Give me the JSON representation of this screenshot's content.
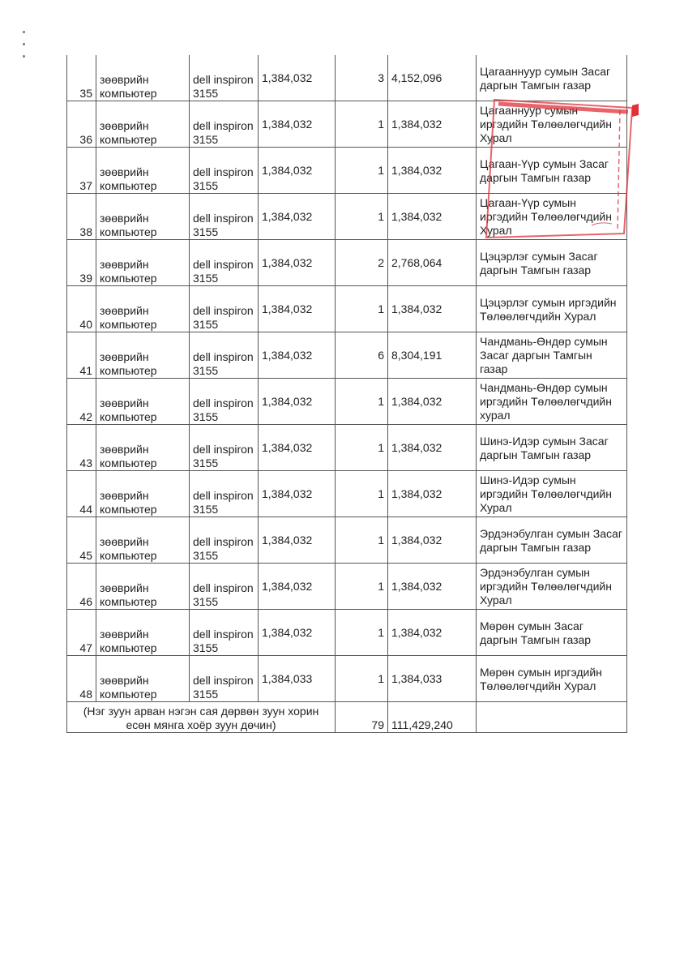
{
  "rows": [
    {
      "no": "35",
      "item": "зөөврийн компьютер",
      "model": "dell inspiron 3155",
      "price": "1,384,032",
      "qty": "3",
      "total": "4,152,096",
      "org": "Цагааннуур сумын Засаг даргын Тамгын газар"
    },
    {
      "no": "36",
      "item": "зөөврийн компьютер",
      "model": "dell inspiron 3155",
      "price": "1,384,032",
      "qty": "1",
      "total": "1,384,032",
      "org": "Цагааннуур сумын иргэдийн Төлөөлөгчдийн Хурал"
    },
    {
      "no": "37",
      "item": "зөөврийн компьютер",
      "model": "dell inspiron 3155",
      "price": "1,384,032",
      "qty": "1",
      "total": "1,384,032",
      "org": "Цагаан-Үүр сумын Засаг даргын Тамгын газар"
    },
    {
      "no": "38",
      "item": "зөөврийн компьютер",
      "model": "dell inspiron 3155",
      "price": "1,384,032",
      "qty": "1",
      "total": "1,384,032",
      "org": "Цагаан-Үүр сумын иргэдийн Төлөөлөгчдийн Хурал"
    },
    {
      "no": "39",
      "item": "зөөврийн компьютер",
      "model": "dell inspiron 3155",
      "price": "1,384,032",
      "qty": "2",
      "total": "2,768,064",
      "org": "Цэцэрлэг сумын Засаг даргын Тамгын газар"
    },
    {
      "no": "40",
      "item": "зөөврийн компьютер",
      "model": "dell inspiron 3155",
      "price": "1,384,032",
      "qty": "1",
      "total": "1,384,032",
      "org": "Цэцэрлэг сумын иргэдийн Төлөөлөгчдийн Хурал"
    },
    {
      "no": "41",
      "item": "зөөврийн компьютер",
      "model": "dell inspiron 3155",
      "price": "1,384,032",
      "qty": "6",
      "total": "8,304,191",
      "org": "Чандмань-Өндөр сумын Засаг даргын Тамгын газар"
    },
    {
      "no": "42",
      "item": "зөөврийн компьютер",
      "model": "dell inspiron 3155",
      "price": "1,384,032",
      "qty": "1",
      "total": "1,384,032",
      "org": "Чандмань-Өндөр сумын иргэдийн Төлөөлөгчдийн хурал"
    },
    {
      "no": "43",
      "item": "зөөврийн компьютер",
      "model": "dell inspiron 3155",
      "price": "1,384,032",
      "qty": "1",
      "total": "1,384,032",
      "org": "Шинэ-Идэр сумын Засаг даргын Тамгын газар"
    },
    {
      "no": "44",
      "item": "зөөврийн компьютер",
      "model": "dell inspiron 3155",
      "price": "1,384,032",
      "qty": "1",
      "total": "1,384,032",
      "org": "Шинэ-Идэр сумын иргэдийн Төлөөлөгчдийн Хурал"
    },
    {
      "no": "45",
      "item": "зөөврийн компьютер",
      "model": "dell inspiron 3155",
      "price": "1,384,032",
      "qty": "1",
      "total": "1,384,032",
      "org": "Эрдэнэбулган сумын Засаг даргын Тамгын газар"
    },
    {
      "no": "46",
      "item": "зөөврийн компьютер",
      "model": "dell inspiron 3155",
      "price": "1,384,032",
      "qty": "1",
      "total": "1,384,032",
      "org": "Эрдэнэбулган сумын иргэдийн Төлөөлөгчдийн Хурал"
    },
    {
      "no": "47",
      "item": "зөөврийн компьютер",
      "model": "dell inspiron 3155",
      "price": "1,384,032",
      "qty": "1",
      "total": "1,384,032",
      "org": "Мөрөн сумын Засаг даргын Тамгын газар"
    },
    {
      "no": "48",
      "item": "зөөврийн компьютер",
      "model": "dell inspiron 3155",
      "price": "1,384,033",
      "qty": "1",
      "total": "1,384,033",
      "org": "Мөрөн сумын иргэдийн Төлөөлөгчдийн Хурал"
    }
  ],
  "summary": {
    "words": "(Нэг зуун арван нэгэн сая дөрвөн зуун хорин есөн мянга хоёр зуун дөчин)",
    "qty": "79",
    "total": "111,429,240"
  },
  "stamp_color": "#e0303a"
}
